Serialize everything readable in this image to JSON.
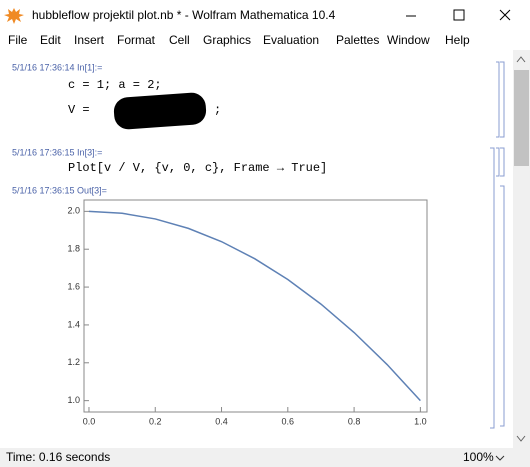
{
  "window": {
    "title": "hubbleflow projektil plot.nb * - Wolfram Mathematica 10.4",
    "status": "Time: 0.16 seconds",
    "zoom": "100%"
  },
  "menu": [
    "File",
    "Edit",
    "Insert",
    "Format",
    "Cell",
    "Graphics",
    "Evaluation",
    "Palettes",
    "Window",
    "Help"
  ],
  "cells": [
    {
      "label": "5/1/16 17:36:14 In[1]:=",
      "lines": [
        "c = 1; a = 2;",
        "V =",
        ";"
      ]
    },
    {
      "label": "5/1/16 17:36:15 In[3]:=",
      "lines": [
        "Plot[v / V, {v, 0, c}, Frame → True]"
      ]
    },
    {
      "label": "5/1/16 17:36:15 Out[3]="
    }
  ],
  "chart_data": {
    "type": "line",
    "color": "#5e81b5",
    "x": [
      0,
      0.1,
      0.2,
      0.3,
      0.4,
      0.5,
      0.6,
      0.7,
      0.8,
      0.9,
      1.0
    ],
    "values": [
      2.0,
      1.99,
      1.96,
      1.91,
      1.84,
      1.75,
      1.64,
      1.51,
      1.36,
      1.19,
      1.0
    ],
    "xlim": [
      -0.015,
      1.02
    ],
    "ylim": [
      0.94,
      2.06
    ],
    "xticks": [
      {
        "value": 0,
        "label": "0.0"
      },
      {
        "value": 0.2,
        "label": "0.2"
      },
      {
        "value": 0.4,
        "label": "0.4"
      },
      {
        "value": 0.6,
        "label": "0.6"
      },
      {
        "value": 0.8,
        "label": "0.8"
      },
      {
        "value": 1,
        "label": "1.0"
      }
    ],
    "yticks": [
      {
        "value": 1,
        "label": "1.0"
      },
      {
        "value": 1.2,
        "label": "1.2"
      },
      {
        "value": 1.4,
        "label": "1.4"
      },
      {
        "value": 1.6,
        "label": "1.6"
      },
      {
        "value": 1.8,
        "label": "1.8"
      },
      {
        "value": 2,
        "label": "2.0"
      }
    ]
  }
}
